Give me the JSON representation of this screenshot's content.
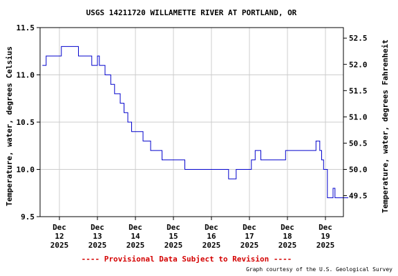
{
  "chart_data": {
    "type": "line",
    "title": "USGS 14211720 WILLAMETTE RIVER AT PORTLAND, OR",
    "ylabel": "Temperature, water, degrees Celsius",
    "y2label": "Temperature, water, degrees Fahrenheit",
    "ylim": [
      9.5,
      11.5
    ],
    "yticks": [
      "11.5",
      "11.0",
      "10.5",
      "10.0",
      "9.5"
    ],
    "y2ticks": [
      "52.5",
      "52.0",
      "51.5",
      "51.0",
      "50.5",
      "50.0",
      "49.5"
    ],
    "xlim": [
      -0.45,
      7.9
    ],
    "x_labels": [
      {
        "month": "Dec",
        "day": "12",
        "year": "2025"
      },
      {
        "month": "Dec",
        "day": "13",
        "year": "2025"
      },
      {
        "month": "Dec",
        "day": "14",
        "year": "2025"
      },
      {
        "month": "Dec",
        "day": "15",
        "year": "2025"
      },
      {
        "month": "Dec",
        "day": "16",
        "year": "2025"
      },
      {
        "month": "Dec",
        "day": "17",
        "year": "2025"
      },
      {
        "month": "Dec",
        "day": "18",
        "year": "2025"
      },
      {
        "month": "Dec",
        "day": "19",
        "year": "2025"
      }
    ],
    "grid": true,
    "series": [
      {
        "color": "#0000cc",
        "x": [
          -0.45,
          -0.4,
          -0.35,
          0.0,
          0.05,
          0.45,
          0.5,
          0.8,
          0.85,
          0.95,
          1.0,
          1.05,
          1.1,
          1.2,
          1.3,
          1.35,
          1.45,
          1.5,
          1.6,
          1.7,
          1.8,
          1.9,
          2.05,
          2.2,
          2.4,
          2.7,
          3.3,
          3.9,
          4.4,
          4.45,
          4.5,
          4.65,
          5.05,
          5.15,
          5.3,
          5.5,
          5.95,
          6.7,
          6.75,
          6.85,
          6.9,
          6.95,
          7.05,
          7.1,
          7.2,
          7.25,
          7.6
        ],
        "y": [
          11.1,
          11.1,
          11.2,
          11.2,
          11.3,
          11.3,
          11.2,
          11.2,
          11.1,
          11.1,
          11.2,
          11.1,
          11.1,
          11.0,
          11.0,
          10.9,
          10.8,
          10.8,
          10.7,
          10.6,
          10.5,
          10.4,
          10.4,
          10.3,
          10.2,
          10.1,
          10.0,
          10.0,
          10.0,
          9.9,
          9.9,
          10.0,
          10.1,
          10.2,
          10.1,
          10.1,
          10.2,
          10.2,
          10.3,
          10.2,
          10.1,
          10.0,
          9.7,
          9.7,
          9.8,
          9.7,
          9.7
        ]
      }
    ]
  },
  "provisional_note": "---- Provisional Data Subject to Revision ----",
  "credit": "Graph courtesy of the U.S. Geological Survey"
}
